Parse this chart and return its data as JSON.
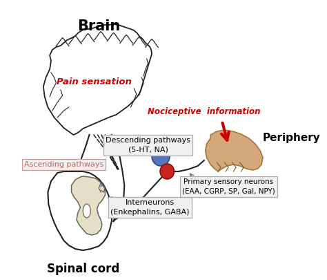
{
  "background_color": "#ffffff",
  "brain_label": "Brain",
  "pain_sensation_label": "Pain sensation",
  "pain_sensation_color": "#cc0000",
  "spinal_cord_label": "Spinal cord",
  "periphery_label": "Periphery",
  "nociceptive_label": "Nociceptive  information",
  "nociceptive_color": "#cc0000",
  "descending_label": "Descending pathways",
  "descending_sub": "(5-HT, NA)",
  "ascending_label": "Ascending pathways",
  "ascending_color": "#bb6666",
  "interneurons_label": "Interneurons",
  "interneurons_sub": "(Enkephalins, GABA)",
  "primary_sensory_label": "Primary sensory neurons",
  "primary_sensory_sub": "(EAA, CGRP, SP, Gal, NPY)",
  "blue_dot_color": "#5577bb",
  "red_dot_color": "#cc2222",
  "spinal_cord_fill": "#e5dfc8",
  "periphery_fill": "#d4a87a",
  "nerve_color": "#222222",
  "box_fill": "#f0f0f0",
  "box_edge": "#aaaaaa",
  "box_edge_asc": "#cc9999"
}
